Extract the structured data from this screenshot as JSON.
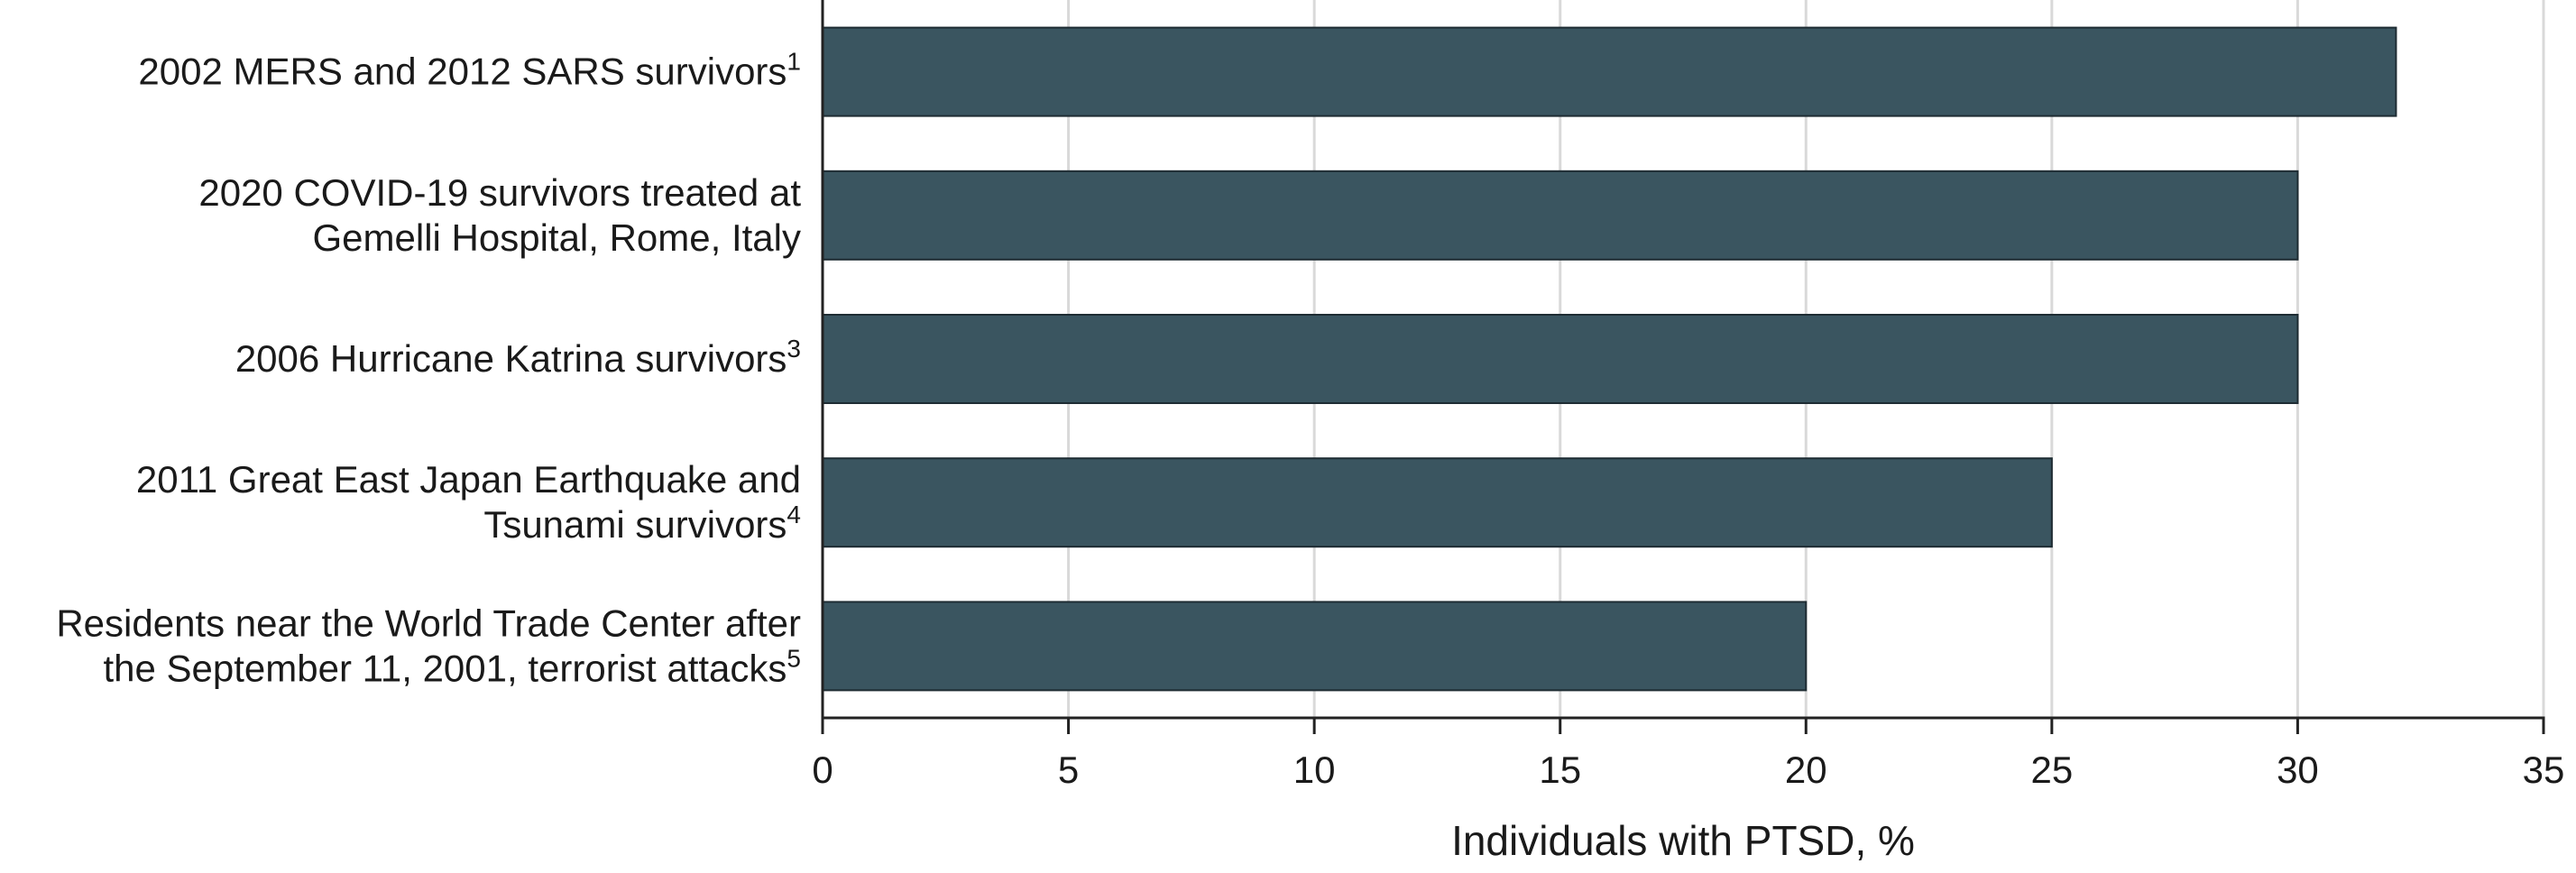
{
  "chart_data": {
    "type": "bar",
    "orientation": "horizontal",
    "categories": [
      {
        "lines": [
          "2002 MERS and 2012 SARS survivors"
        ],
        "ref": "1"
      },
      {
        "lines": [
          "2020 COVID-19 survivors treated at",
          "Gemelli Hospital, Rome, Italy"
        ],
        "ref": ""
      },
      {
        "lines": [
          "2006 Hurricane Katrina survivors"
        ],
        "ref": "3"
      },
      {
        "lines": [
          "2011 Great East Japan Earthquake and",
          "Tsunami survivors"
        ],
        "ref": "4"
      },
      {
        "lines": [
          "Residents near the World Trade Center after",
          "the September 11, 2001, terrorist attacks"
        ],
        "ref": "5"
      }
    ],
    "values": [
      32,
      30,
      30,
      25,
      20
    ],
    "xlabel": "Individuals with PTSD, %",
    "xlim": [
      0,
      35
    ],
    "xticks": [
      0,
      5,
      10,
      15,
      20,
      25,
      30,
      35
    ],
    "grid": "vertical",
    "colors": {
      "bar": "#3a5560",
      "bar_edge": "#1e2c33",
      "grid": "#d9d9d9",
      "axis": "#222222"
    }
  }
}
